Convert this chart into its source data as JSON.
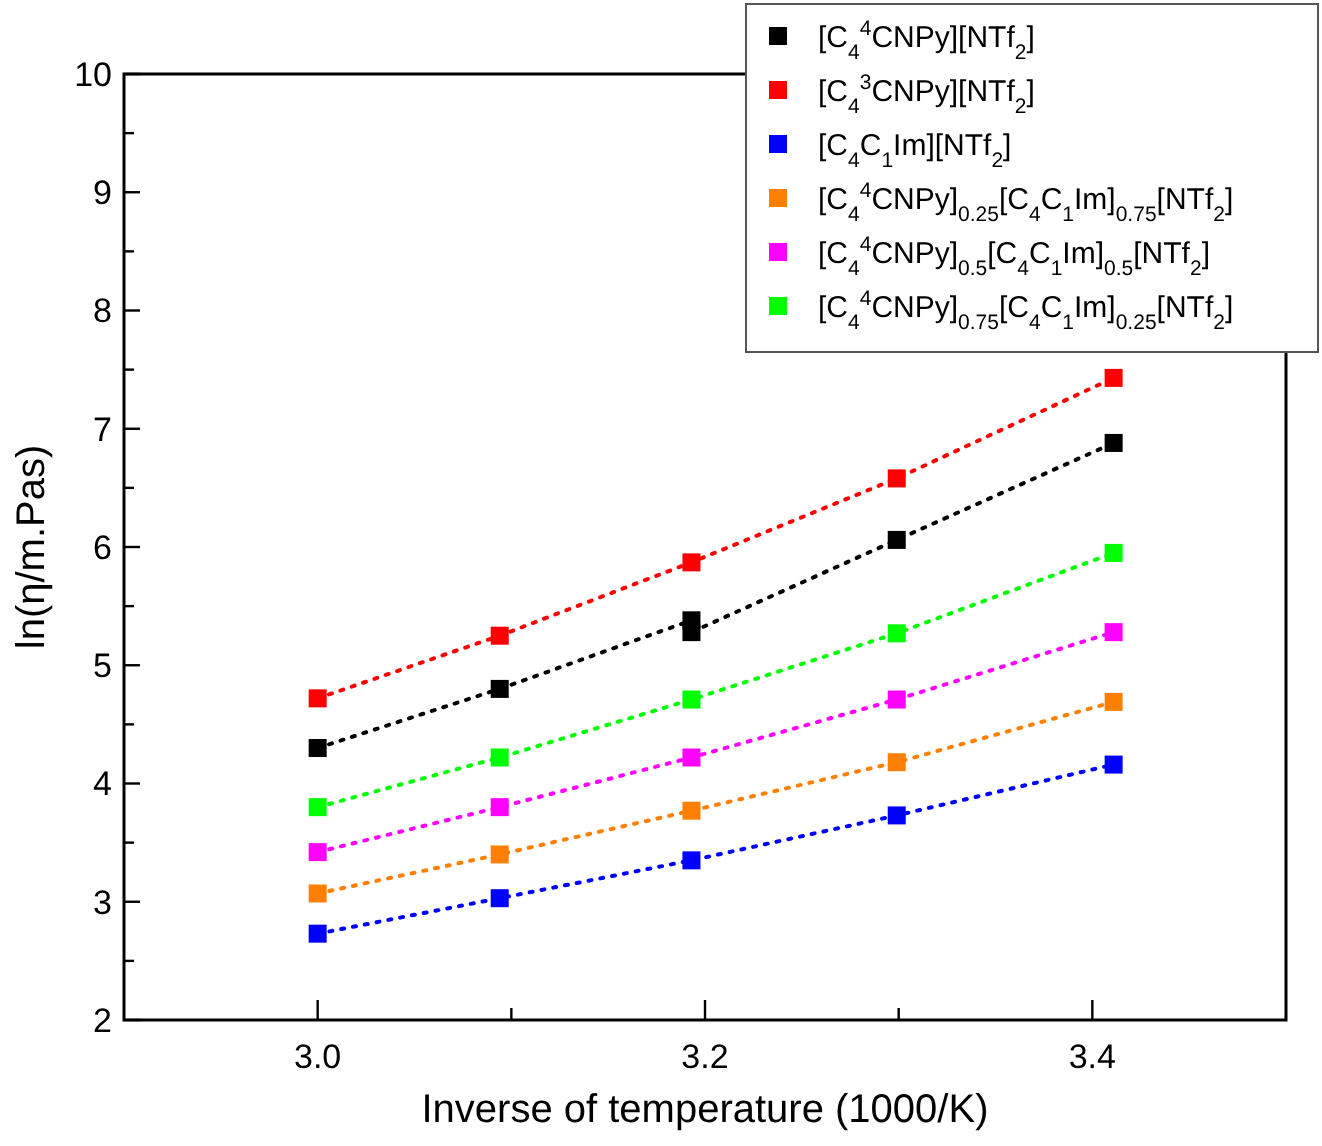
{
  "chart_data": {
    "type": "line",
    "xlabel": "Inverse of temperature (1000/K)",
    "ylabel": "ln(η/m.Pas)",
    "xlim": [
      2.9,
      3.5
    ],
    "xticks": [
      {
        "value": 3.0,
        "label": "3.0"
      },
      {
        "value": 3.1,
        "label": null
      },
      {
        "value": 3.2,
        "label": "3.2"
      },
      {
        "value": 3.3,
        "label": null
      },
      {
        "value": 3.4,
        "label": "3.4"
      }
    ],
    "ylim": [
      2,
      10
    ],
    "yticks": [
      2,
      3,
      4,
      5,
      6,
      7,
      8,
      9,
      10
    ],
    "grid": false,
    "legend": "top right",
    "marker": "square",
    "line_style": "dotted",
    "series": [
      {
        "name": "[C$_{4}$$^{4}$CNPy][NTf$_{2}$]",
        "color": "#000000",
        "x": [
          3.0,
          3.094,
          3.193,
          3.193,
          3.299,
          3.411
        ],
        "values": [
          4.3,
          4.8,
          5.38,
          5.28,
          6.06,
          6.88
        ]
      },
      {
        "name": "[C$_{4}$$^{3}$CNPy][NTf$_{2}$]",
        "color": "#ff0000",
        "x": [
          3.0,
          3.094,
          3.193,
          3.299,
          3.411
        ],
        "values": [
          4.72,
          5.25,
          5.87,
          6.58,
          7.43
        ]
      },
      {
        "name": "[C$_{4}$C$_{1}$Im][NTf$_{2}$]",
        "color": "#0000ff",
        "x": [
          3.0,
          3.094,
          3.193,
          3.299,
          3.411
        ],
        "values": [
          2.73,
          3.03,
          3.35,
          3.73,
          4.16
        ]
      },
      {
        "name": "[C$_{4}$$^{4}$CNPy]$_{0.25}$[C$_{4}$C$_{1}$Im]$_{0.75}$[NTf$_{2}$]",
        "color": "#ff7f00",
        "x": [
          3.0,
          3.094,
          3.193,
          3.299,
          3.411
        ],
        "values": [
          3.07,
          3.4,
          3.77,
          4.18,
          4.69
        ]
      },
      {
        "name": "[C$_{4}$$^{4}$CNPy]$_{0.5}$[C$_{4}$C$_{1}$Im]$_{0.5}$[NTf$_{2}$]",
        "color": "#ff00ff",
        "x": [
          3.0,
          3.094,
          3.193,
          3.299,
          3.411
        ],
        "values": [
          3.42,
          3.8,
          4.22,
          4.71,
          5.28
        ]
      },
      {
        "name": "[C$_{4}$$^{4}$CNPy]$_{0.75}$[C$_{4}$C$_{1}$Im]$_{0.25}$[NTf$_{2}$]",
        "color": "#00ff00",
        "x": [
          3.0,
          3.094,
          3.193,
          3.299,
          3.411
        ],
        "values": [
          3.8,
          4.22,
          4.71,
          5.27,
          5.95
        ]
      }
    ]
  }
}
